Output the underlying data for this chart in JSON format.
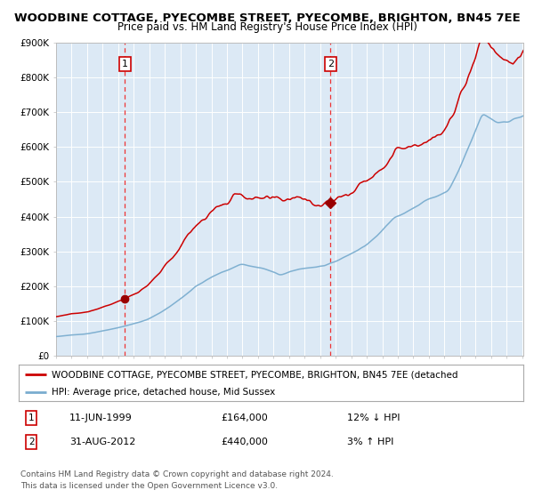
{
  "title": "WOODBINE COTTAGE, PYECOMBE STREET, PYECOMBE, BRIGHTON, BN45 7EE",
  "subtitle": "Price paid vs. HM Land Registry's House Price Index (HPI)",
  "background_color": "#ffffff",
  "plot_bg_color": "#dce9f5",
  "ylabel": "",
  "xlabel": "",
  "ylim": [
    0,
    900000
  ],
  "yticks": [
    0,
    100000,
    200000,
    300000,
    400000,
    500000,
    600000,
    700000,
    800000,
    900000
  ],
  "ytick_labels": [
    "£0",
    "£100K",
    "£200K",
    "£300K",
    "£400K",
    "£500K",
    "£600K",
    "£700K",
    "£800K",
    "£900K"
  ],
  "x_start_year": 1995,
  "x_end_year": 2025,
  "purchase1_year": 1999.44,
  "purchase1_price": 164000,
  "purchase2_year": 2012.66,
  "purchase2_price": 440000,
  "purchase1_date": "11-JUN-1999",
  "purchase1_hpi_text": "12% ↓ HPI",
  "purchase2_date": "31-AUG-2012",
  "purchase2_hpi_text": "3% ↑ HPI",
  "red_line_color": "#cc0000",
  "blue_line_color": "#7aadcf",
  "marker_color": "#990000",
  "dashed_line_color": "#ee3333",
  "legend_label_red": "WOODBINE COTTAGE, PYECOMBE STREET, PYECOMBE, BRIGHTON, BN45 7EE (detached",
  "legend_label_blue": "HPI: Average price, detached house, Mid Sussex",
  "footer1": "Contains HM Land Registry data © Crown copyright and database right 2024.",
  "footer2": "This data is licensed under the Open Government Licence v3.0.",
  "title_fontsize": 9.5,
  "subtitle_fontsize": 8.5,
  "tick_fontsize": 7.5,
  "legend_fontsize": 7.5,
  "info_fontsize": 8.0,
  "footer_fontsize": 6.5
}
